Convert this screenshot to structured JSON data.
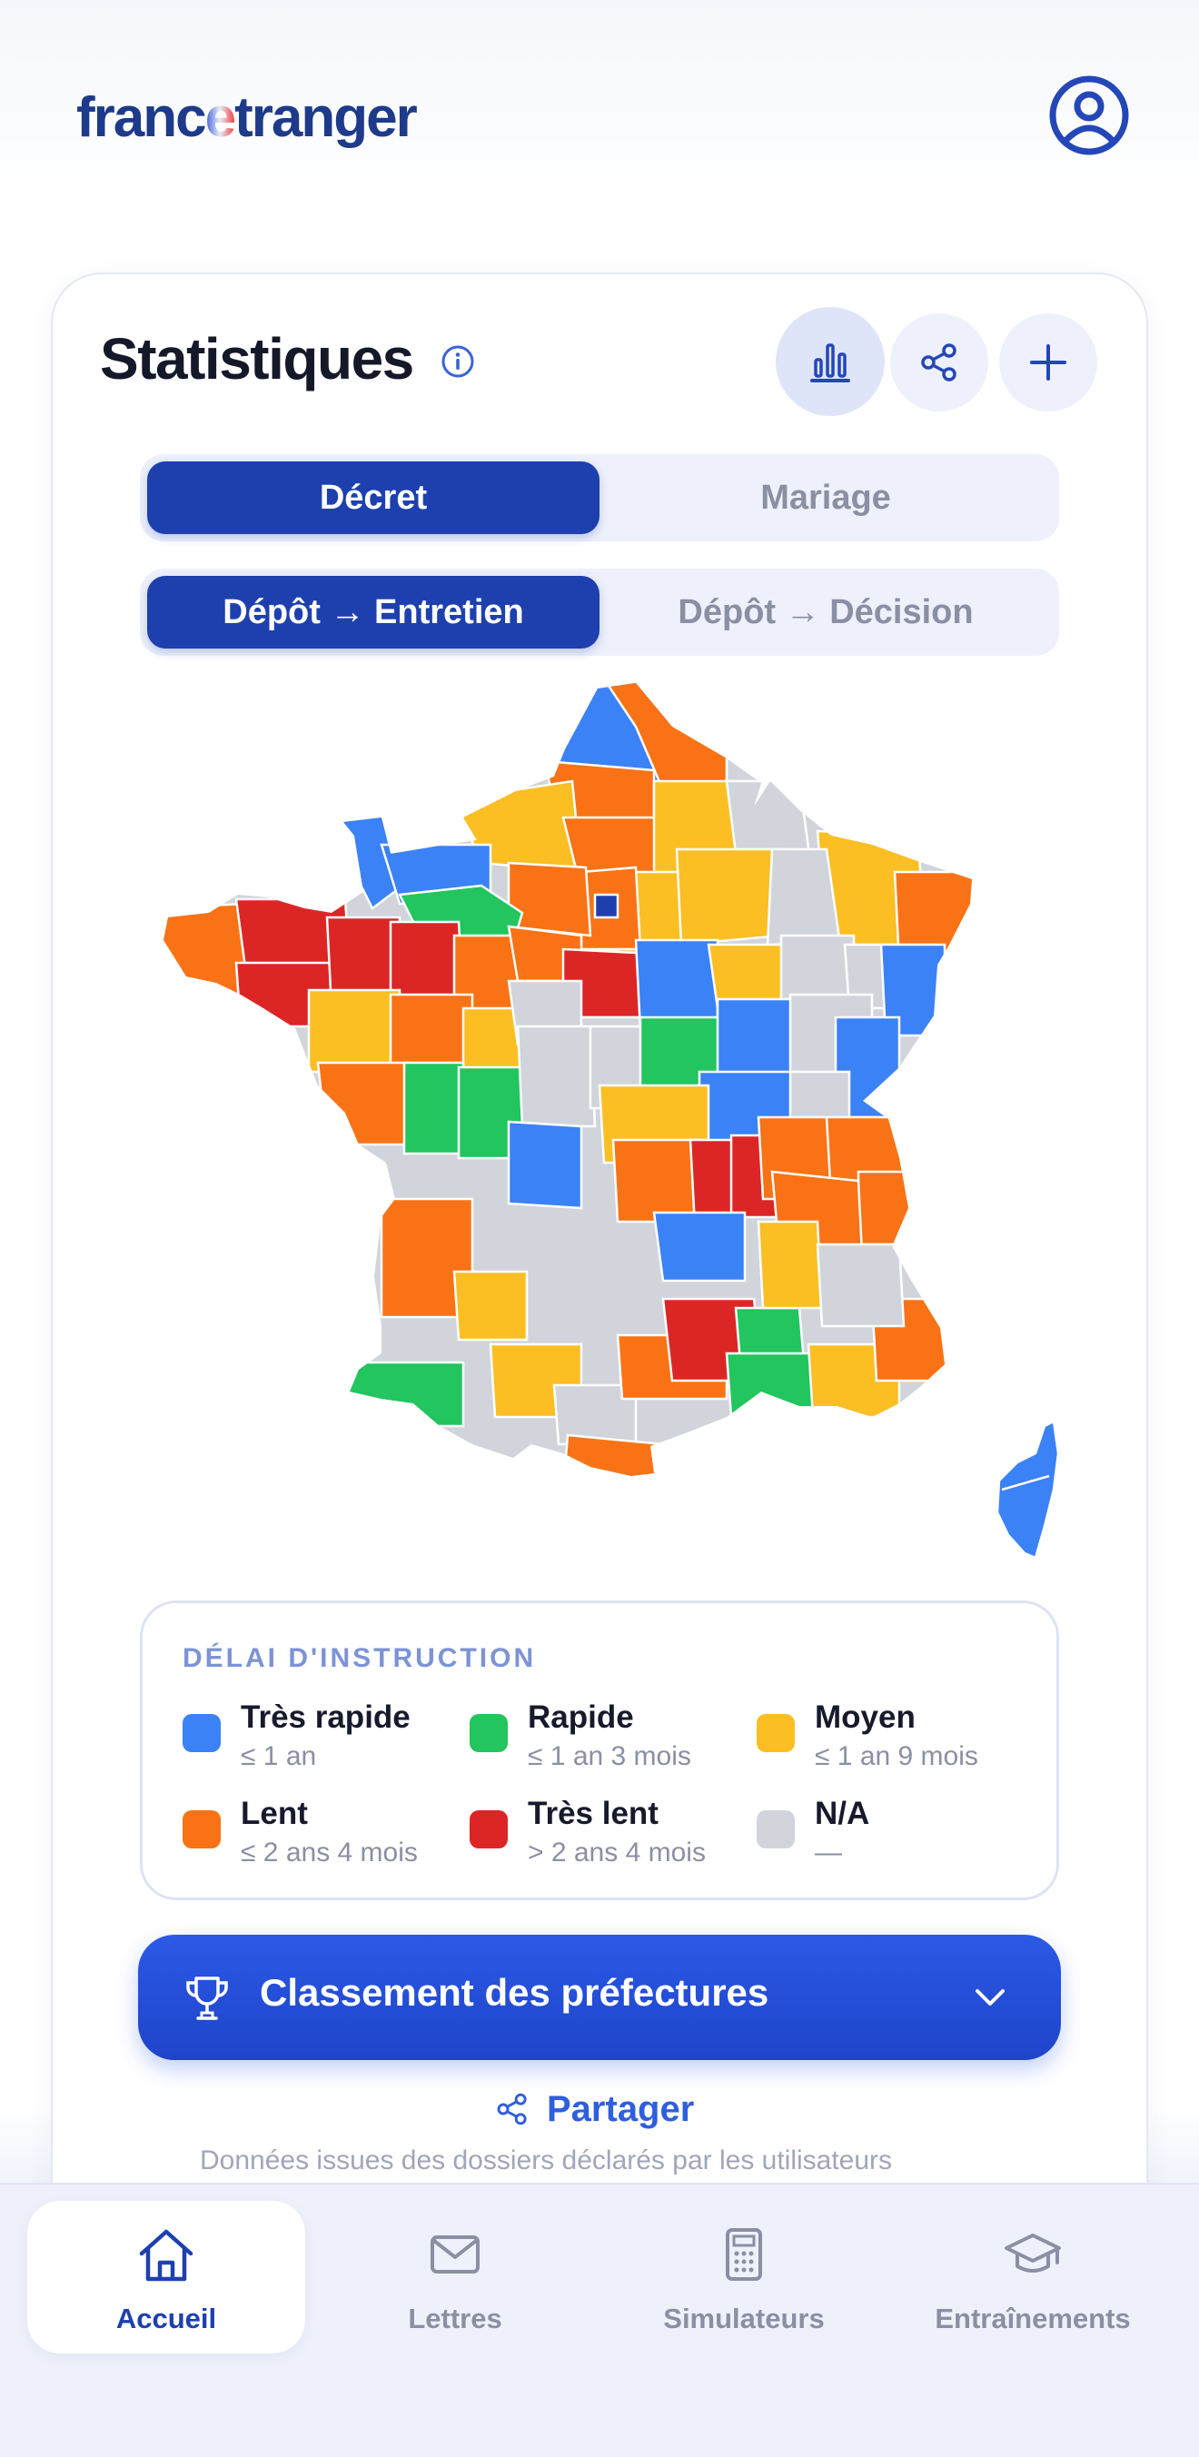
{
  "app": {
    "logo_text_1": "franc",
    "logo_text_2": "e",
    "logo_text_3": "tranger",
    "profile_icon": "user-circle-icon"
  },
  "stats": {
    "title": "Statistiques",
    "toolbar": [
      {
        "icon": "bar-chart-icon",
        "active": true
      },
      {
        "icon": "share-icon",
        "active": false
      },
      {
        "icon": "plus-icon",
        "active": false
      }
    ],
    "type_tabs": [
      {
        "label": "Décret",
        "selected": true
      },
      {
        "label": "Mariage",
        "selected": false
      }
    ],
    "period_tabs": [
      {
        "label": "Dépôt → Entretien",
        "selected": true
      },
      {
        "label": "Dépôt → Décision",
        "selected": false
      }
    ]
  },
  "colors": {
    "tres_rapide": "#3b82f6",
    "rapide": "#22c55e",
    "moyen": "#fbbf24",
    "lent": "#f97316",
    "tres_lent": "#dc2626",
    "na": "#d1d5db",
    "primary": "#1e40af",
    "accent": "#2f5fde"
  },
  "legend": {
    "title": "DÉLAI D'INSTRUCTION",
    "items": [
      {
        "name": "Très rapide",
        "range": "≤ 1 an",
        "color": "#3b82f6"
      },
      {
        "name": "Rapide",
        "range": "≤ 1 an 3 mois",
        "color": "#22c55e"
      },
      {
        "name": "Moyen",
        "range": "≤ 1 an 9 mois",
        "color": "#fbbf24"
      },
      {
        "name": "Lent",
        "range": "≤ 2 ans 4 mois",
        "color": "#f97316"
      },
      {
        "name": "Très lent",
        "range": "> 2 ans 4 mois",
        "color": "#dc2626"
      },
      {
        "name": "N/A",
        "range": "—",
        "color": "#d1d5db"
      }
    ]
  },
  "ranking_button": {
    "label": "Classement des préfectures",
    "icon": "trophy-icon",
    "toggle_icon": "chevron-down-icon"
  },
  "share_link": {
    "label": "Partager",
    "icon": "share-icon"
  },
  "footnote_peek": "Données issues des dossiers déclarés par les utilisateurs",
  "bottom_nav": [
    {
      "label": "Accueil",
      "icon": "home-icon",
      "active": true
    },
    {
      "label": "Lettres",
      "icon": "mail-icon",
      "active": false
    },
    {
      "label": "Simulateurs",
      "icon": "calculator-icon",
      "active": false
    },
    {
      "label": "Entraînements",
      "icon": "graduation-cap-icon",
      "active": false
    }
  ]
}
